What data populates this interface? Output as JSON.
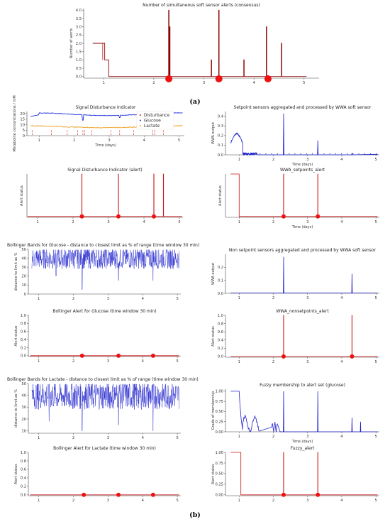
{
  "figure": {
    "caption_a": "(a)",
    "caption_b": "(b)",
    "colors": {
      "alert_red": "#cc1111",
      "dot_red": "#ee1111",
      "wwa_blue": "#1f22cc",
      "glucose_blue": "#2233dd",
      "lactate_orange": "#f0a020",
      "dark_red": "#8b0000"
    }
  },
  "chart_data": [
    {
      "id": "consensus",
      "type": "line",
      "title": "Number of simultaneous soft sensor alerts (consensus)",
      "xlabel": "",
      "ylabel": "Number of alerts",
      "xlim": [
        0.6,
        5.3
      ],
      "ylim": [
        -0.1,
        4.1
      ],
      "xticks": [
        1,
        2,
        3,
        4,
        5
      ],
      "yticks": [
        0.0,
        0.5,
        1.0,
        1.5,
        2.0,
        2.5,
        3.0,
        3.5,
        4.0
      ],
      "series": [
        {
          "values_step": [
            [
              0.78,
              2
            ],
            [
              1.02,
              1
            ],
            [
              1.1,
              0
            ],
            [
              2.3,
              4
            ],
            [
              3.15,
              1
            ],
            [
              3.3,
              4
            ],
            [
              3.8,
              1
            ],
            [
              4.25,
              3
            ],
            [
              4.55,
              2
            ],
            [
              5.05,
              0
            ]
          ]
        }
      ],
      "markers_x": [
        2.3,
        3.3,
        4.28
      ]
    },
    {
      "id": "signal_disturbance",
      "type": "line",
      "title": "Signal Disturbance Indicator",
      "xlabel": "Time (days)",
      "ylabel": "Metabolite concentrations / mM",
      "xlim": [
        0.65,
        5.15
      ],
      "ylim": [
        0,
        22
      ],
      "xticks": [
        1,
        2,
        3,
        4,
        5
      ],
      "yticks": [
        0,
        5,
        10,
        15,
        20
      ],
      "legend": [
        "Disturbance",
        "Glucose",
        "Lactate"
      ],
      "disturbance_x": [
        0.8,
        1.35,
        1.8,
        2.1,
        2.25,
        2.3,
        2.5,
        3.05,
        3.3,
        3.7,
        4.25,
        4.3,
        4.55
      ]
    },
    {
      "id": "wwa_setpoint",
      "type": "line",
      "title": "Setpoint sensors aggregated and processed by WWA soft sensor",
      "xlabel": "Time (days)",
      "ylabel": "WWA output",
      "xlim": [
        0.6,
        5.1
      ],
      "ylim": [
        0,
        0.45
      ],
      "xticks": [
        1,
        2,
        3,
        4,
        5
      ],
      "yticks": [
        0.0,
        0.1,
        0.2,
        0.3,
        0.4
      ],
      "spikes": [
        [
          2.3,
          0.43
        ],
        [
          3.3,
          0.15
        ],
        [
          4.3,
          0.02
        ]
      ]
    },
    {
      "id": "signal_disturbance_alert",
      "type": "line",
      "title": "Signal Disturbance Indicator (alert)",
      "xlabel": "",
      "ylabel": "Alert status",
      "xlim": [
        0.7,
        5.1
      ],
      "ylim": [
        -0.02,
        1.0
      ],
      "xticks": [
        1,
        2,
        3,
        4,
        5
      ],
      "yticks": [],
      "alerts_x": [
        2.25,
        3.28,
        4.28,
        4.55
      ],
      "markers_x": [
        2.25,
        3.28,
        4.28
      ]
    },
    {
      "id": "wwa_setpoints_alert",
      "type": "line",
      "title": "WWA_setpoints_alert",
      "xlabel": "Time (days)",
      "ylabel": "Alert status",
      "xlim": [
        0.6,
        5.1
      ],
      "ylim": [
        -0.02,
        1.0
      ],
      "xticks": [
        1,
        2,
        3,
        4,
        5
      ],
      "yticks": [],
      "initial_high_until": 1.0,
      "alerts_x": [
        2.3,
        3.3
      ],
      "markers_x": [
        2.3,
        3.3
      ]
    },
    {
      "id": "bollinger_glucose",
      "type": "line",
      "title": "Bollinger Bands for Glucose - distance to closest limit as % of range (time window 30 min)",
      "xlabel": "",
      "ylabel": "distance to limit as %",
      "xlim": [
        0.7,
        5.1
      ],
      "ylim": [
        0,
        50
      ],
      "xticks": [
        1,
        2,
        3,
        4,
        5
      ],
      "yticks": [
        0,
        10,
        20,
        30,
        40,
        50
      ],
      "baseline": 40,
      "dips": [
        [
          2.25,
          5
        ],
        [
          3.3,
          15
        ],
        [
          4.3,
          15
        ],
        [
          1.5,
          20
        ]
      ]
    },
    {
      "id": "wwa_nonsetpoint",
      "type": "line",
      "title": "Non setpoint sensors aggregated and processed by WWA soft sensor",
      "xlabel": "",
      "ylabel": "WWA output",
      "xlim": [
        0.6,
        5.1
      ],
      "ylim": [
        0,
        0.3
      ],
      "xticks": [
        1,
        2,
        3,
        4,
        5
      ],
      "yticks": [
        0.0,
        0.1,
        0.2
      ],
      "spikes": [
        [
          2.3,
          0.28
        ],
        [
          4.3,
          0.15
        ]
      ]
    },
    {
      "id": "bollinger_glucose_alert",
      "type": "line",
      "title": "Bollinger Alert for Glucose (time window 30 min)",
      "xlabel": "",
      "ylabel": "Alert status",
      "xlim": [
        0.7,
        5.1
      ],
      "ylim": [
        -0.02,
        1.0
      ],
      "xticks": [
        1,
        2,
        3,
        4,
        5
      ],
      "yticks": [
        0.0,
        0.2,
        0.4,
        0.6,
        0.8,
        1.0
      ],
      "markers_x": [
        2.25,
        3.3,
        4.3
      ]
    },
    {
      "id": "wwa_nonsetpoints_alert",
      "type": "line",
      "title": "WWA_nonsetpoints_alert",
      "xlabel": "",
      "ylabel": "Alert status",
      "xlim": [
        0.6,
        5.1
      ],
      "ylim": [
        -0.02,
        1.0
      ],
      "xticks": [
        1,
        2,
        3,
        4,
        5
      ],
      "yticks": [
        0.0,
        0.2,
        0.4,
        0.6,
        0.8,
        1.0
      ],
      "alerts_x": [
        2.3,
        4.3
      ],
      "markers_x": [
        2.3,
        4.3
      ]
    },
    {
      "id": "bollinger_lactate",
      "type": "line",
      "title": "Bollinger Bands for Lactate - distance to closest limit as % of range (time window 30 min)",
      "xlabel": "",
      "ylabel": "distance to limit as %",
      "xlim": [
        0.7,
        5.1
      ],
      "ylim": [
        8,
        50
      ],
      "xticks": [
        1,
        2,
        3,
        4,
        5
      ],
      "yticks": [
        10,
        20,
        30,
        40,
        50
      ],
      "baseline": 40,
      "dips": [
        [
          1.3,
          18
        ],
        [
          2.25,
          10
        ],
        [
          3.3,
          15
        ],
        [
          4.3,
          10
        ]
      ]
    },
    {
      "id": "fuzzy_membership",
      "type": "line",
      "title": "Fuzzy membership to alert set (glucose)",
      "xlabel": "Time (days)",
      "ylabel": "Grade of membership",
      "xlim": [
        0.6,
        5.1
      ],
      "ylim": [
        0,
        1.05
      ],
      "xticks": [
        1,
        2,
        3,
        4,
        5
      ],
      "yticks": [
        0.0,
        0.25,
        0.5,
        0.75,
        1.0
      ],
      "spikes": [
        [
          2.3,
          1.0
        ],
        [
          3.3,
          1.0
        ],
        [
          4.3,
          0.35
        ],
        [
          4.55,
          0.25
        ]
      ]
    },
    {
      "id": "bollinger_lactate_alert",
      "type": "line",
      "title": "Bollinger Alert for Lactate (time window 30 min)",
      "xlabel": "",
      "ylabel": "Alert status",
      "xlim": [
        0.7,
        5.1
      ],
      "ylim": [
        -0.02,
        1.0
      ],
      "xticks": [
        1,
        2,
        3,
        4,
        5
      ],
      "yticks": [
        0.0,
        0.2,
        0.4,
        0.6,
        0.8,
        1.0
      ],
      "markers_x": [
        2.3,
        3.3,
        4.3
      ]
    },
    {
      "id": "fuzzy_alert",
      "type": "line",
      "title": "Fuzzy_alert",
      "xlabel": "",
      "ylabel": "Alert status",
      "xlim": [
        0.6,
        5.1
      ],
      "ylim": [
        -0.02,
        1.0
      ],
      "xticks": [
        1,
        2,
        3,
        4,
        5
      ],
      "yticks": [
        0.0,
        0.25,
        0.5,
        0.75,
        1.0
      ],
      "initial_high_until": 1.05,
      "alerts_x": [
        2.3,
        3.3
      ],
      "markers_x": [
        2.3,
        3.3
      ]
    }
  ]
}
